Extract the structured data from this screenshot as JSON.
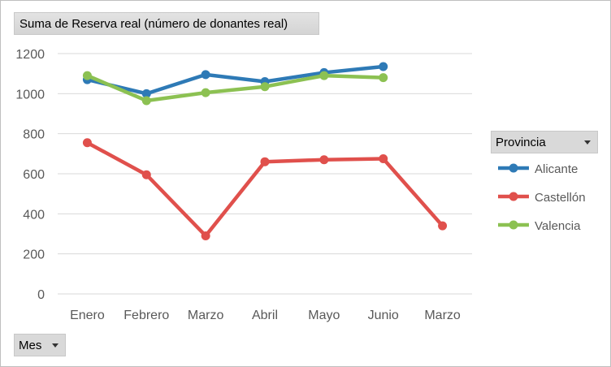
{
  "pivot": {
    "value_field": "Suma de Reserva real (número de donantes real)",
    "axis_field": "Mes",
    "legend_field": "Provincia"
  },
  "chart_data": {
    "type": "line",
    "title": "",
    "xlabel": "",
    "ylabel": "",
    "categories": [
      "Enero",
      "Febrero",
      "Marzo",
      "Abril",
      "Mayo",
      "Junio",
      "Marzo"
    ],
    "y_ticks": [
      "0",
      "200",
      "400",
      "600",
      "800",
      "1000",
      "1200"
    ],
    "ylim": [
      0,
      1200
    ],
    "grid": true,
    "legend_position": "right",
    "series": [
      {
        "name": "Alicante",
        "color": "#2e7ab6",
        "values": [
          1070,
          1000,
          1095,
          1060,
          1105,
          1135,
          null
        ]
      },
      {
        "name": "Castellón",
        "color": "#e0504c",
        "values": [
          755,
          595,
          290,
          660,
          670,
          675,
          340
        ]
      },
      {
        "name": "Valencia",
        "color": "#8cc152",
        "values": [
          1090,
          965,
          1005,
          1035,
          1090,
          1080,
          null
        ]
      }
    ]
  }
}
